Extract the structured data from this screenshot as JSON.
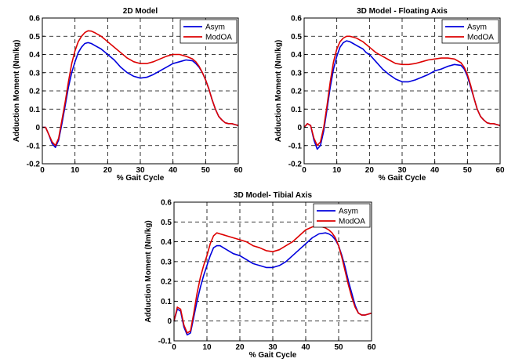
{
  "colors": {
    "series_1": "#0000dd",
    "series_2": "#dd0000",
    "grid": "#000000"
  },
  "chart_data": [
    {
      "type": "line",
      "title": "2D Model",
      "xlabel": "% Gait Cycle",
      "ylabel": "Adduction Moment (Nm/kg)",
      "xlim": [
        0,
        60
      ],
      "ylim": [
        -0.2,
        0.6
      ],
      "xticks": [
        0,
        10,
        20,
        30,
        40,
        50,
        60
      ],
      "yticks": [
        -0.2,
        -0.1,
        0,
        0.1,
        0.2,
        0.3,
        0.4,
        0.5,
        0.6
      ],
      "xtick_labels": [
        "0",
        "10",
        "20",
        "30",
        "40",
        "50",
        "60"
      ],
      "ytick_labels": [
        "-0.2",
        "-0.1",
        "0",
        "0.1",
        "0.2",
        "0.3",
        "0.4",
        "0.5",
        "0.6"
      ],
      "grid": true,
      "legend_position": "top-right",
      "series": [
        {
          "name": "Asym",
          "color": "#0000dd",
          "x": [
            0,
            1,
            2,
            3,
            4,
            5,
            6,
            7,
            8,
            9,
            10,
            11,
            12,
            13,
            14,
            15,
            16,
            17,
            18,
            19,
            20,
            22,
            24,
            26,
            28,
            30,
            32,
            34,
            36,
            38,
            40,
            42,
            44,
            46,
            47,
            48,
            49,
            50,
            51,
            52,
            53,
            54,
            55,
            56,
            57,
            58,
            59,
            60
          ],
          "y": [
            0.0,
            0.0,
            -0.04,
            -0.09,
            -0.11,
            -0.07,
            0.02,
            0.12,
            0.22,
            0.3,
            0.36,
            0.41,
            0.44,
            0.46,
            0.465,
            0.46,
            0.45,
            0.44,
            0.43,
            0.415,
            0.4,
            0.37,
            0.33,
            0.3,
            0.28,
            0.27,
            0.275,
            0.29,
            0.31,
            0.33,
            0.35,
            0.36,
            0.37,
            0.365,
            0.35,
            0.33,
            0.3,
            0.26,
            0.21,
            0.15,
            0.1,
            0.06,
            0.04,
            0.025,
            0.02,
            0.02,
            0.015,
            0.01
          ]
        },
        {
          "name": "ModOA",
          "color": "#dd0000",
          "x": [
            0,
            1,
            2,
            3,
            4,
            5,
            6,
            7,
            8,
            9,
            10,
            11,
            12,
            13,
            14,
            15,
            16,
            17,
            18,
            19,
            20,
            22,
            24,
            26,
            28,
            30,
            32,
            34,
            36,
            38,
            40,
            42,
            44,
            46,
            47,
            48,
            49,
            50,
            51,
            52,
            53,
            54,
            55,
            56,
            57,
            58,
            59,
            60
          ],
          "y": [
            0.0,
            0.0,
            -0.04,
            -0.08,
            -0.1,
            -0.06,
            0.04,
            0.14,
            0.25,
            0.35,
            0.42,
            0.47,
            0.5,
            0.52,
            0.53,
            0.528,
            0.52,
            0.51,
            0.5,
            0.485,
            0.47,
            0.44,
            0.41,
            0.38,
            0.36,
            0.35,
            0.35,
            0.36,
            0.375,
            0.39,
            0.4,
            0.4,
            0.39,
            0.375,
            0.36,
            0.335,
            0.3,
            0.26,
            0.21,
            0.15,
            0.1,
            0.06,
            0.04,
            0.025,
            0.02,
            0.02,
            0.015,
            0.01
          ]
        }
      ]
    },
    {
      "type": "line",
      "title": "3D Model - Floating Axis",
      "xlabel": "% Gait Cycle",
      "ylabel": "Adduction Moment (Nm/kg)",
      "xlim": [
        0,
        60
      ],
      "ylim": [
        -0.2,
        0.6
      ],
      "xticks": [
        0,
        10,
        20,
        30,
        40,
        50,
        60
      ],
      "yticks": [
        -0.2,
        -0.1,
        0,
        0.1,
        0.2,
        0.3,
        0.4,
        0.5,
        0.6
      ],
      "xtick_labels": [
        "0",
        "10",
        "20",
        "30",
        "40",
        "50",
        "60"
      ],
      "ytick_labels": [
        "-0.2",
        "-0.1",
        "0",
        "0.1",
        "0.2",
        "0.3",
        "0.4",
        "0.5",
        "0.6"
      ],
      "grid": true,
      "legend_position": "top-right",
      "series": [
        {
          "name": "Asym",
          "color": "#0000dd",
          "x": [
            0,
            1,
            2,
            3,
            4,
            5,
            6,
            7,
            8,
            9,
            10,
            11,
            12,
            13,
            14,
            15,
            16,
            17,
            18,
            19,
            20,
            22,
            24,
            26,
            28,
            30,
            32,
            34,
            36,
            38,
            40,
            42,
            44,
            46,
            48,
            49,
            50,
            51,
            52,
            53,
            54,
            55,
            56,
            57,
            58,
            59,
            60
          ],
          "y": [
            0.0,
            0.02,
            0.01,
            -0.07,
            -0.12,
            -0.1,
            -0.02,
            0.1,
            0.22,
            0.32,
            0.39,
            0.44,
            0.465,
            0.475,
            0.47,
            0.46,
            0.45,
            0.44,
            0.43,
            0.41,
            0.4,
            0.36,
            0.32,
            0.29,
            0.265,
            0.25,
            0.25,
            0.26,
            0.275,
            0.29,
            0.31,
            0.32,
            0.335,
            0.345,
            0.34,
            0.32,
            0.28,
            0.22,
            0.16,
            0.1,
            0.06,
            0.04,
            0.025,
            0.02,
            0.02,
            0.015,
            0.01
          ]
        },
        {
          "name": "ModOA",
          "color": "#dd0000",
          "x": [
            0,
            1,
            2,
            3,
            4,
            5,
            6,
            7,
            8,
            9,
            10,
            11,
            12,
            13,
            14,
            15,
            16,
            17,
            18,
            19,
            20,
            22,
            24,
            26,
            28,
            30,
            32,
            34,
            36,
            38,
            40,
            42,
            44,
            46,
            48,
            49,
            50,
            51,
            52,
            53,
            54,
            55,
            56,
            57,
            58,
            59,
            60
          ],
          "y": [
            0.0,
            0.02,
            0.01,
            -0.06,
            -0.1,
            -0.08,
            0.0,
            0.12,
            0.25,
            0.36,
            0.43,
            0.47,
            0.49,
            0.5,
            0.5,
            0.495,
            0.49,
            0.48,
            0.47,
            0.455,
            0.44,
            0.41,
            0.39,
            0.37,
            0.35,
            0.345,
            0.345,
            0.35,
            0.36,
            0.37,
            0.375,
            0.38,
            0.38,
            0.375,
            0.355,
            0.33,
            0.29,
            0.23,
            0.16,
            0.1,
            0.06,
            0.04,
            0.025,
            0.02,
            0.02,
            0.015,
            0.01
          ]
        }
      ]
    },
    {
      "type": "line",
      "title": "3D Model- Tibial Axis",
      "xlabel": "% Gait Cycle",
      "ylabel": "Adduction Moment (Nm/kg)",
      "xlim": [
        0,
        60
      ],
      "ylim": [
        -0.1,
        0.6
      ],
      "xticks": [
        0,
        10,
        20,
        30,
        40,
        50,
        60
      ],
      "yticks": [
        -0.1,
        0,
        0.1,
        0.2,
        0.3,
        0.4,
        0.5,
        0.6
      ],
      "xtick_labels": [
        "0",
        "10",
        "20",
        "30",
        "40",
        "50",
        "60"
      ],
      "ytick_labels": [
        "-0.1",
        "0",
        "0.1",
        "0.2",
        "0.3",
        "0.4",
        "0.5",
        "0.6"
      ],
      "grid": true,
      "legend_position": "top-right",
      "series": [
        {
          "name": "Asym",
          "color": "#0000dd",
          "x": [
            0,
            1,
            2,
            3,
            4,
            5,
            6,
            7,
            8,
            9,
            10,
            11,
            12,
            13,
            14,
            15,
            16,
            18,
            20,
            22,
            24,
            26,
            28,
            30,
            32,
            34,
            36,
            38,
            40,
            42,
            44,
            46,
            47,
            48,
            49,
            50,
            51,
            52,
            53,
            54,
            55,
            56,
            57,
            58,
            59,
            60
          ],
          "y": [
            0.0,
            0.06,
            0.05,
            -0.03,
            -0.07,
            -0.06,
            0.02,
            0.1,
            0.17,
            0.23,
            0.28,
            0.33,
            0.37,
            0.38,
            0.38,
            0.37,
            0.36,
            0.34,
            0.33,
            0.31,
            0.29,
            0.28,
            0.27,
            0.27,
            0.28,
            0.3,
            0.33,
            0.36,
            0.39,
            0.42,
            0.44,
            0.445,
            0.44,
            0.43,
            0.41,
            0.38,
            0.33,
            0.27,
            0.2,
            0.14,
            0.08,
            0.04,
            0.03,
            0.03,
            0.035,
            0.04
          ]
        },
        {
          "name": "ModOA",
          "color": "#dd0000",
          "x": [
            0,
            1,
            2,
            3,
            4,
            5,
            6,
            7,
            8,
            9,
            10,
            11,
            12,
            13,
            14,
            15,
            16,
            18,
            20,
            22,
            24,
            26,
            28,
            30,
            32,
            34,
            36,
            38,
            40,
            42,
            44,
            46,
            47,
            48,
            49,
            50,
            51,
            52,
            53,
            54,
            55,
            56,
            57,
            58,
            59,
            60
          ],
          "y": [
            0.0,
            0.07,
            0.06,
            -0.02,
            -0.06,
            -0.05,
            0.04,
            0.14,
            0.22,
            0.28,
            0.33,
            0.39,
            0.43,
            0.445,
            0.44,
            0.435,
            0.43,
            0.42,
            0.41,
            0.4,
            0.38,
            0.37,
            0.355,
            0.35,
            0.36,
            0.38,
            0.4,
            0.43,
            0.46,
            0.475,
            0.48,
            0.47,
            0.46,
            0.445,
            0.42,
            0.38,
            0.32,
            0.25,
            0.18,
            0.12,
            0.07,
            0.04,
            0.03,
            0.03,
            0.035,
            0.04
          ]
        }
      ]
    }
  ]
}
